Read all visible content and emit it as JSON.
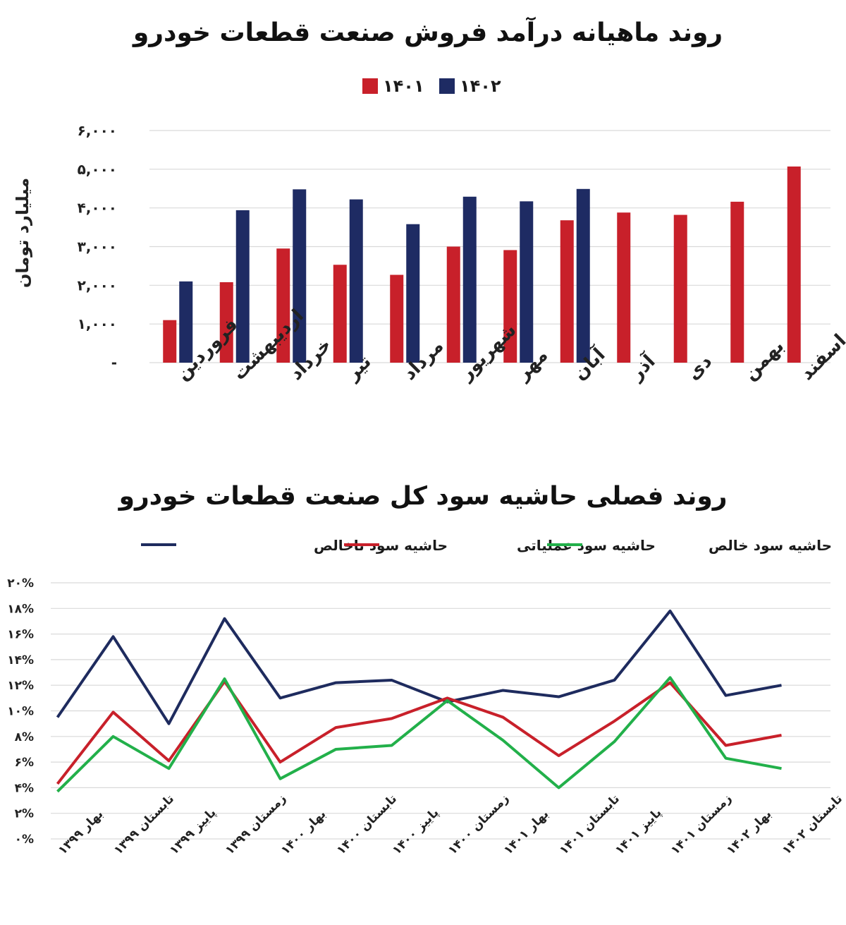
{
  "charts": [
    {
      "type": "bar",
      "title": "روند ماهیانه درآمد فروش صنعت قطعات خودرو",
      "ylabel": "میلیارد تومان",
      "categories": [
        "فروردین",
        "اردیبهشت",
        "خرداد",
        "تیر",
        "مرداد",
        "شهریور",
        "مهر",
        "آبان",
        "آذر",
        "دی",
        "بهمن",
        "اسفند"
      ],
      "ylim": [
        0,
        6000
      ],
      "yticks": [
        "-",
        "۱,۰۰۰",
        "۲,۰۰۰",
        "۳,۰۰۰",
        "۴,۰۰۰",
        "۵,۰۰۰",
        "۶,۰۰۰"
      ],
      "legend_position": "top-center",
      "series": [
        {
          "name": "۱۴۰۱",
          "color": "#c8202a",
          "values": [
            1100,
            2080,
            2950,
            2530,
            2270,
            3000,
            2910,
            3680,
            3880,
            3820,
            4160,
            5070
          ]
        },
        {
          "name": "۱۴۰۲",
          "color": "#1e2b63",
          "values": [
            2100,
            3940,
            4480,
            4220,
            3580,
            4290,
            4170,
            4490,
            null,
            null,
            null,
            null
          ]
        }
      ]
    },
    {
      "type": "line",
      "title": "روند فصلی حاشیه سود کل صنعت قطعات خودرو",
      "ylim": [
        0,
        20
      ],
      "yticks": [
        "۰%",
        "۲%",
        "۴%",
        "۶%",
        "۸%",
        "۱۰%",
        "۱۲%",
        "۱۴%",
        "۱۶%",
        "۱۸%",
        "۲۰%"
      ],
      "categories": [
        "بهار ۱۳۹۹",
        "تابستان ۱۳۹۹",
        "پاییز ۱۳۹۹",
        "زمستان ۱۳۹۹",
        "بهار ۱۴۰۰",
        "تابستان ۱۴۰۰",
        "پاییز ۱۴۰۰",
        "زمستان ۱۴۰۰",
        "بهار ۱۴۰۱",
        "تابستان ۱۴۰۱",
        "پاییز ۱۴۰۱",
        "زمستان ۱۴۰۱",
        "بهار ۱۴۰۲",
        "تابستان ۱۴۰۲"
      ],
      "legend_position": "top-center",
      "series": [
        {
          "name": "حاشیه سود ناخالص",
          "color": "#1e2b5e",
          "values": [
            9.5,
            15.8,
            9.0,
            17.2,
            11.0,
            12.2,
            12.4,
            10.7,
            11.6,
            11.1,
            12.4,
            17.8,
            11.2,
            12.0
          ]
        },
        {
          "name": "حاشیه سود عملیاتی",
          "color": "#c8202a",
          "values": [
            4.3,
            9.9,
            6.1,
            12.3,
            6.0,
            8.7,
            9.4,
            11.0,
            9.5,
            6.5,
            9.2,
            12.2,
            7.3,
            8.1
          ]
        },
        {
          "name": "حاشیه سود خالص",
          "color": "#22b04a",
          "values": [
            3.7,
            8.0,
            5.5,
            12.5,
            4.7,
            7.0,
            7.3,
            10.8,
            7.7,
            4.0,
            7.6,
            12.6,
            6.3,
            5.5
          ]
        }
      ]
    }
  ]
}
